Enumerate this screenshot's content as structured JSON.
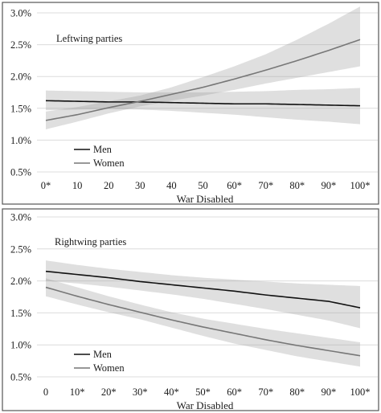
{
  "chart_data": [
    {
      "type": "line",
      "title": "Leftwing parties",
      "xlabel": "War Disabled",
      "ylabel": "",
      "x": [
        0,
        10,
        20,
        30,
        40,
        50,
        60,
        70,
        80,
        90,
        100
      ],
      "x_tick_labels": [
        "0*",
        "10",
        "20",
        "30",
        "40",
        "50",
        "60*",
        "70*",
        "80*",
        "90*",
        "100*"
      ],
      "xlim": [
        0,
        100
      ],
      "ylim": [
        0.5,
        3.0
      ],
      "y_ticks": [
        0.5,
        1.0,
        1.5,
        2.0,
        2.5,
        3.0
      ],
      "y_tick_labels": [
        "0.5%",
        "1.0%",
        "1.5%",
        "2.0%",
        "2.5%",
        "3.0%"
      ],
      "grid": true,
      "legend_position": "bottom-left",
      "series": [
        {
          "name": "Men",
          "color": "#111111",
          "values": [
            1.62,
            1.61,
            1.6,
            1.6,
            1.59,
            1.58,
            1.57,
            1.57,
            1.56,
            1.55,
            1.54
          ],
          "ci_lower": [
            1.47,
            1.48,
            1.49,
            1.48,
            1.46,
            1.43,
            1.4,
            1.36,
            1.32,
            1.29,
            1.25
          ],
          "ci_upper": [
            1.78,
            1.77,
            1.76,
            1.75,
            1.75,
            1.75,
            1.76,
            1.77,
            1.79,
            1.8,
            1.82
          ]
        },
        {
          "name": "Women",
          "color": "#777777",
          "values": [
            1.31,
            1.4,
            1.51,
            1.61,
            1.72,
            1.83,
            1.96,
            2.1,
            2.25,
            2.41,
            2.58
          ],
          "ci_lower": [
            1.17,
            1.29,
            1.42,
            1.53,
            1.62,
            1.7,
            1.79,
            1.89,
            1.98,
            2.07,
            2.16
          ],
          "ci_upper": [
            1.45,
            1.52,
            1.61,
            1.7,
            1.83,
            1.99,
            2.16,
            2.35,
            2.58,
            2.83,
            3.1
          ]
        }
      ]
    },
    {
      "type": "line",
      "title": "Rightwing parties",
      "xlabel": "War Disabled",
      "ylabel": "",
      "x": [
        0,
        10,
        20,
        30,
        40,
        50,
        60,
        70,
        80,
        90,
        100
      ],
      "x_tick_labels": [
        "0",
        "10*",
        "20*",
        "30*",
        "40*",
        "50*",
        "60*",
        "70*",
        "80*",
        "90*",
        "100*"
      ],
      "xlim": [
        0,
        100
      ],
      "ylim": [
        0.5,
        3.0
      ],
      "y_ticks": [
        0.5,
        1.0,
        1.5,
        2.0,
        2.5,
        3.0
      ],
      "y_tick_labels": [
        "0.5%",
        "1.0%",
        "1.5%",
        "2.0%",
        "2.5%",
        "3.0%"
      ],
      "grid": true,
      "legend_position": "bottom-left",
      "series": [
        {
          "name": "Men",
          "color": "#111111",
          "values": [
            2.15,
            2.1,
            2.05,
            1.99,
            1.94,
            1.89,
            1.84,
            1.78,
            1.73,
            1.68,
            1.58
          ],
          "ci_lower": [
            2.0,
            1.96,
            1.91,
            1.85,
            1.79,
            1.72,
            1.64,
            1.56,
            1.47,
            1.38,
            1.26
          ],
          "ci_upper": [
            2.32,
            2.25,
            2.19,
            2.14,
            2.09,
            2.05,
            2.02,
            1.99,
            1.96,
            1.94,
            1.92
          ]
        },
        {
          "name": "Women",
          "color": "#777777",
          "values": [
            1.9,
            1.76,
            1.63,
            1.51,
            1.39,
            1.28,
            1.18,
            1.08,
            0.99,
            0.91,
            0.83
          ],
          "ci_lower": [
            1.76,
            1.63,
            1.51,
            1.4,
            1.27,
            1.14,
            1.02,
            0.92,
            0.82,
            0.74,
            0.66
          ],
          "ci_upper": [
            2.04,
            1.9,
            1.76,
            1.63,
            1.51,
            1.41,
            1.33,
            1.25,
            1.18,
            1.11,
            1.04
          ]
        }
      ]
    }
  ]
}
